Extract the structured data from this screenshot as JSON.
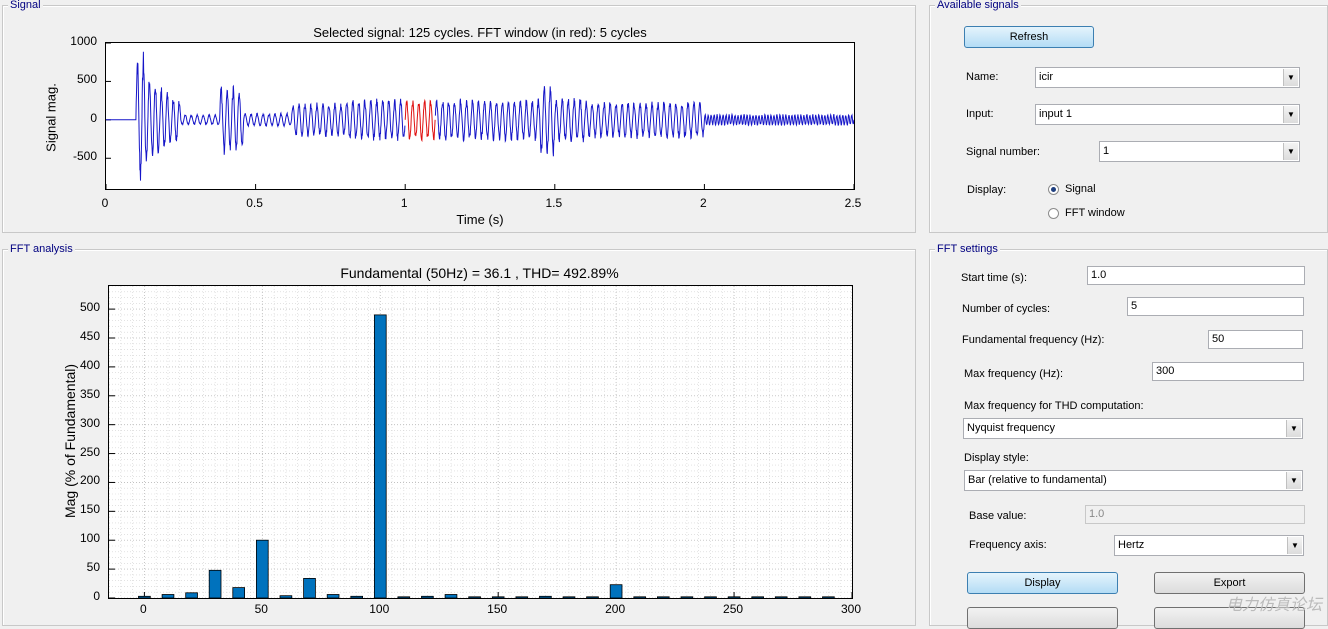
{
  "panels": {
    "signal": "Signal",
    "available": "Available signals",
    "fft": "FFT analysis",
    "settings": "FFT settings"
  },
  "signal_plot": {
    "title": "Selected signal: 125 cycles. FFT window (in red): 5 cycles",
    "xlabel": "Time (s)",
    "ylabel": "Signal mag.",
    "xticks": [
      "0",
      "0.5",
      "1",
      "1.5",
      "2",
      "2.5"
    ],
    "yticks": [
      "1000",
      "500",
      "0",
      "-500"
    ]
  },
  "available": {
    "refresh": "Refresh",
    "name_label": "Name:",
    "name_value": "icir",
    "input_label": "Input:",
    "input_value": "input 1",
    "signal_number_label": "Signal number:",
    "signal_number_value": "1",
    "display_label": "Display:",
    "radio_signal": "Signal",
    "radio_fft": "FFT window"
  },
  "settings": {
    "start_time_label": "Start time (s):",
    "start_time_value": "1.0",
    "cycles_label": "Number of cycles:",
    "cycles_value": "5",
    "fund_label": "Fundamental frequency (Hz):",
    "fund_value": "50",
    "maxfreq_label": "Max frequency (Hz):",
    "maxfreq_value": "300",
    "thd_label": "Max frequency for THD computation:",
    "thd_value": "Nyquist frequency",
    "style_label": "Display style:",
    "style_value": "Bar (relative to fundamental)",
    "base_label": "Base value:",
    "base_value": "1.0",
    "faxis_label": "Frequency axis:",
    "faxis_value": "Hertz",
    "display_btn": "Display",
    "export_btn": "Export"
  },
  "watermark": "电力仿真论坛",
  "chart_data": {
    "type": "bar",
    "title": "Fundamental (50Hz) = 36.1 , THD= 492.89%",
    "xlabel": "",
    "ylabel": "Mag (% of Fundamental)",
    "xlim": [
      -15,
      300
    ],
    "ylim": [
      0,
      540
    ],
    "xticks": [
      "0",
      "50",
      "100",
      "150",
      "200",
      "250",
      "300"
    ],
    "yticks": [
      "0",
      "50",
      "100",
      "150",
      "200",
      "250",
      "300",
      "350",
      "400",
      "450",
      "500"
    ],
    "grid": "minor-dotted",
    "color": "#0072bd",
    "x": [
      0,
      10,
      20,
      30,
      40,
      50,
      60,
      70,
      80,
      90,
      100,
      110,
      120,
      130,
      140,
      150,
      160,
      170,
      180,
      190,
      200,
      210,
      220,
      230,
      240,
      250,
      260,
      270,
      280,
      290
    ],
    "values": [
      3,
      6,
      9,
      48,
      18,
      100,
      4,
      34,
      6,
      3,
      490,
      2,
      3,
      6,
      2,
      2,
      2,
      3,
      2,
      2,
      23,
      2,
      2,
      2,
      2,
      2,
      2,
      2,
      2,
      2
    ]
  }
}
